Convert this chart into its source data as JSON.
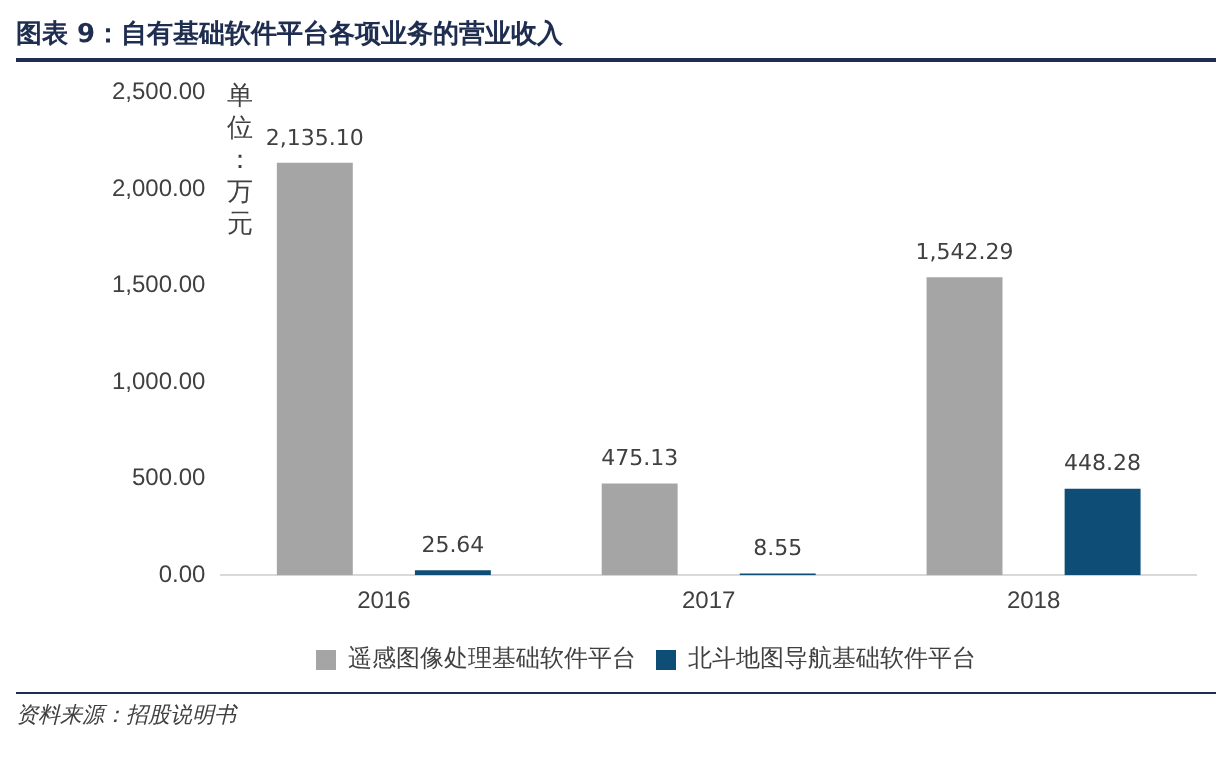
{
  "chart_data": {
    "type": "bar",
    "title": "图表 9：自有基础软件平台各项业务的营业收入",
    "ylabel": "单位：万元",
    "categories": [
      "2016",
      "2017",
      "2018"
    ],
    "series": [
      {
        "name": "遥感图像处理基础软件平台",
        "color": "#a5a5a5",
        "values": [
          2135.1,
          475.13,
          1542.29
        ],
        "value_labels": [
          "2,135.10",
          "475.13",
          "1,542.29"
        ]
      },
      {
        "name": "北斗地图导航基础软件平台",
        "color": "#0e4d75",
        "values": [
          25.64,
          8.55,
          448.28
        ],
        "value_labels": [
          "25.64",
          "8.55",
          "448.28"
        ]
      }
    ],
    "ylim": [
      0,
      2500
    ],
    "yticks": [
      {
        "value": 0,
        "label": "0.00"
      },
      {
        "value": 500,
        "label": "500.00"
      },
      {
        "value": 1000,
        "label": "1,000.00"
      },
      {
        "value": 1500,
        "label": "1,500.00"
      },
      {
        "value": 2000,
        "label": "2,000.00"
      },
      {
        "value": 2500,
        "label": "2,500.00"
      }
    ],
    "grid": false,
    "legend": "bottom",
    "annotations": [
      "资料来源：招股说明书"
    ]
  }
}
